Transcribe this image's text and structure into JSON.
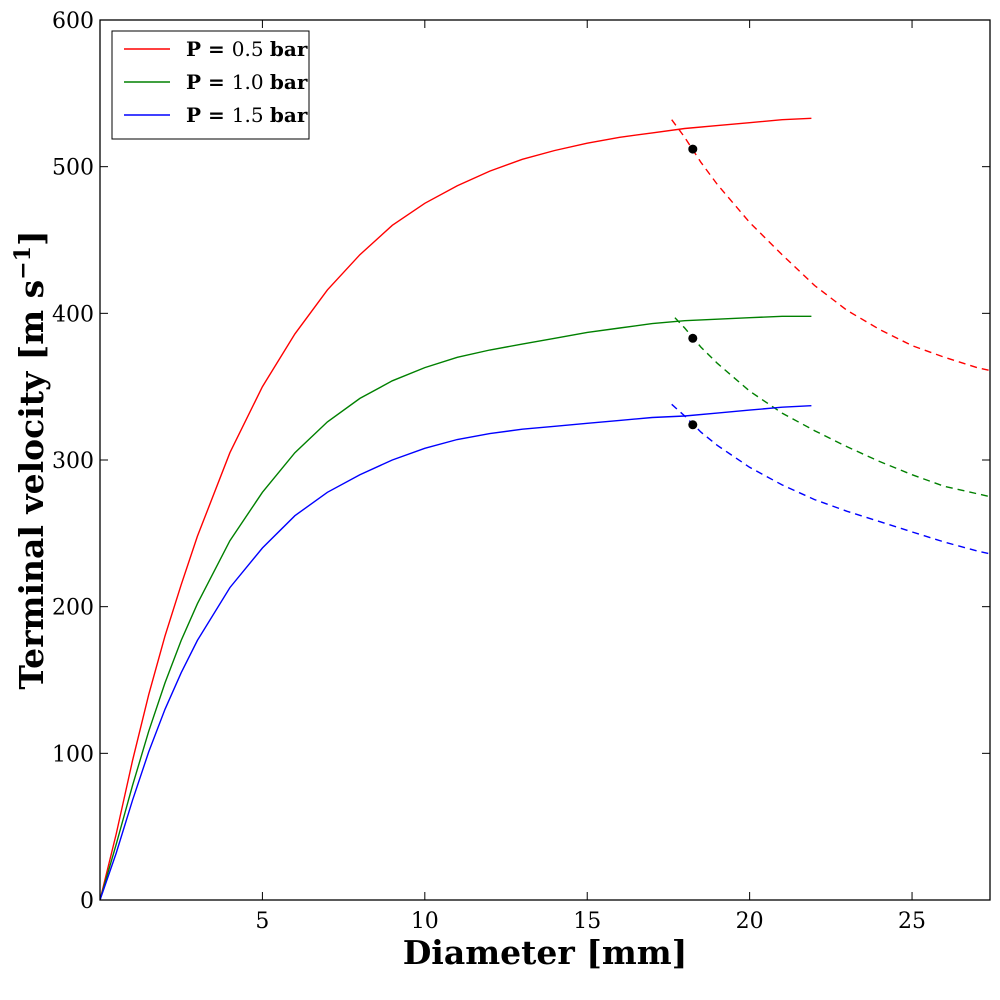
{
  "chart_data": {
    "type": "line",
    "xlabel": "Diameter [mm]",
    "ylabel_main": "Terminal velocity [m s",
    "ylabel_sup": "−1",
    "ylabel_end": "]",
    "xlim": [
      0.0,
      27.4
    ],
    "ylim": [
      0,
      600
    ],
    "xticks": [
      5,
      10,
      15,
      20,
      25
    ],
    "yticks": [
      0,
      100,
      200,
      300,
      400,
      500,
      600
    ],
    "grid": false,
    "legend_position": "top-left",
    "series": [
      {
        "name": "P = 0.5 bar",
        "name_prefix": "P =",
        "name_value": "0.5",
        "name_unit": "bar",
        "color": "#ff0000",
        "solid_x": [
          0.0,
          0.5,
          1.0,
          1.5,
          2.0,
          2.5,
          3.0,
          4.0,
          5.0,
          6.0,
          7.0,
          8.0,
          9.0,
          10.0,
          11.0,
          12.0,
          13.0,
          14.0,
          15.0,
          16.0,
          17.0,
          18.0,
          19.0,
          20.0,
          21.0,
          21.9
        ],
        "solid_y": [
          0,
          45,
          95,
          140,
          180,
          215,
          248,
          305,
          350,
          386,
          416,
          440,
          460,
          475,
          487,
          497,
          505,
          511,
          516,
          520,
          523,
          526,
          528,
          530,
          532,
          533
        ],
        "dashed_x": [
          17.6,
          18.0,
          18.5,
          19.0,
          20.0,
          21.0,
          22.0,
          23.0,
          24.0,
          25.0,
          26.0,
          27.0,
          27.4
        ],
        "dashed_y": [
          532,
          520,
          503,
          488,
          462,
          440,
          419,
          402,
          389,
          378,
          370,
          363,
          361
        ],
        "marker": [
          18.25,
          512
        ]
      },
      {
        "name": "P = 1.0 bar",
        "name_prefix": "P =",
        "name_value": "1.0",
        "name_unit": "bar",
        "color": "#008000",
        "solid_x": [
          0.0,
          0.5,
          1.0,
          1.5,
          2.0,
          2.5,
          3.0,
          4.0,
          5.0,
          6.0,
          7.0,
          8.0,
          9.0,
          10.0,
          11.0,
          12.0,
          13.0,
          14.0,
          15.0,
          16.0,
          17.0,
          18.0,
          19.0,
          20.0,
          21.0,
          21.9
        ],
        "solid_y": [
          0,
          38,
          78,
          115,
          148,
          177,
          202,
          245,
          278,
          305,
          326,
          342,
          354,
          363,
          370,
          375,
          379,
          383,
          387,
          390,
          393,
          395,
          396,
          397,
          398,
          398
        ],
        "dashed_x": [
          17.7,
          18.0,
          18.5,
          19.0,
          20.0,
          21.0,
          22.0,
          23.0,
          24.0,
          25.0,
          26.0,
          27.0,
          27.4
        ],
        "dashed_y": [
          397,
          390,
          377,
          366,
          347,
          332,
          320,
          309,
          299,
          290,
          282,
          277,
          275
        ],
        "marker": [
          18.25,
          383
        ]
      },
      {
        "name": "P = 1.5 bar",
        "name_prefix": "P =",
        "name_value": "1.5",
        "name_unit": "bar",
        "color": "#0000ff",
        "solid_x": [
          0.0,
          0.5,
          1.0,
          1.5,
          2.0,
          2.5,
          3.0,
          4.0,
          5.0,
          6.0,
          7.0,
          8.0,
          9.0,
          10.0,
          11.0,
          12.0,
          13.0,
          14.0,
          15.0,
          16.0,
          17.0,
          18.0,
          19.0,
          20.0,
          21.0,
          21.9
        ],
        "solid_y": [
          0,
          32,
          68,
          101,
          130,
          155,
          177,
          213,
          240,
          262,
          278,
          290,
          300,
          308,
          314,
          318,
          321,
          323,
          325,
          327,
          329,
          330,
          332,
          334,
          336,
          337
        ],
        "dashed_x": [
          17.6,
          18.0,
          18.5,
          19.0,
          20.0,
          21.0,
          22.0,
          23.0,
          24.0,
          25.0,
          26.0,
          27.0,
          27.4
        ],
        "dashed_y": [
          338,
          330,
          319,
          310,
          295,
          283,
          273,
          265,
          258,
          251,
          244,
          238,
          236
        ],
        "marker": [
          18.25,
          324
        ]
      }
    ]
  }
}
